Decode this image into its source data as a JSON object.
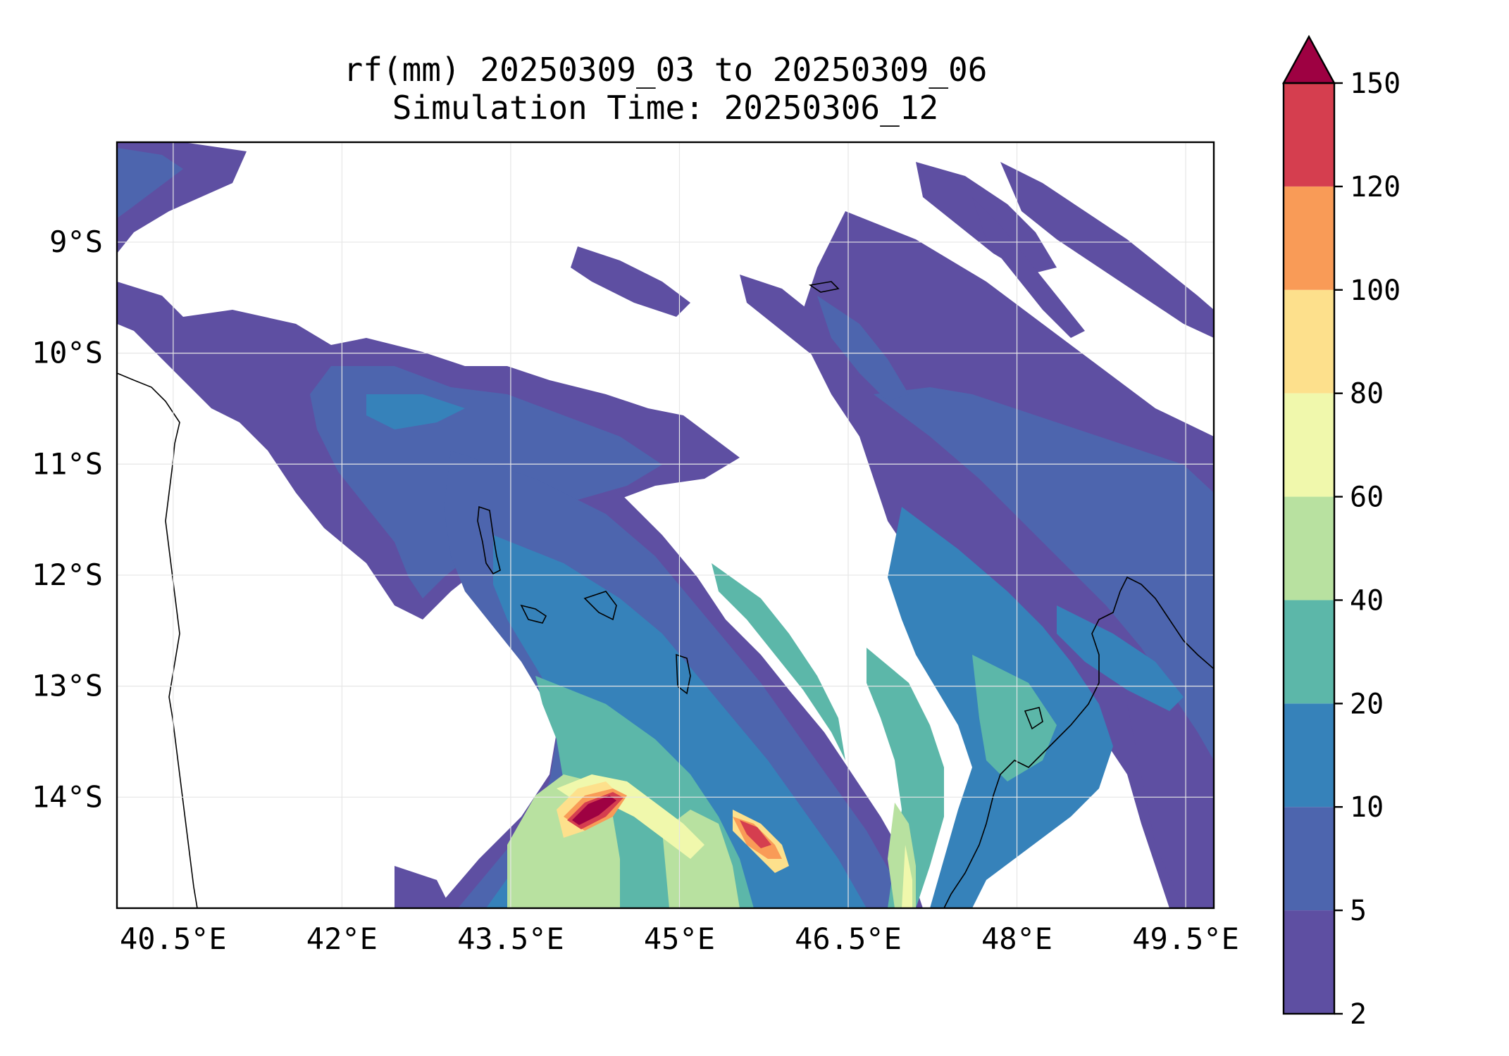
{
  "title": {
    "line1": "rf(mm) 20250309_03 to 20250309_06",
    "line2": "Simulation Time: 20250306_12"
  },
  "map": {
    "region": "Mozambique Channel / Comoros / NW Madagascar",
    "lon_range": [
      40.0,
      49.75
    ],
    "lat_range": [
      -15.0,
      -8.1
    ],
    "x_ticks": [
      {
        "value": 40.5,
        "label": "40.5°E"
      },
      {
        "value": 42.0,
        "label": "42°E"
      },
      {
        "value": 43.5,
        "label": "43.5°E"
      },
      {
        "value": 45.0,
        "label": "45°E"
      },
      {
        "value": 46.5,
        "label": "46.5°E"
      },
      {
        "value": 48.0,
        "label": "48°E"
      },
      {
        "value": 49.5,
        "label": "49.5°E"
      }
    ],
    "y_ticks": [
      {
        "value": -9,
        "label": "9°S"
      },
      {
        "value": -10,
        "label": "10°S"
      },
      {
        "value": -11,
        "label": "11°S"
      },
      {
        "value": -12,
        "label": "12°S"
      },
      {
        "value": -13,
        "label": "13°S"
      },
      {
        "value": -14,
        "label": "14°S"
      }
    ],
    "grid": true,
    "features": [
      "Comoros islands",
      "Mayotte",
      "NW Madagascar coastline",
      "Mozambique/Tanzania coastline",
      "cyclone rainfall band"
    ]
  },
  "colorbar": {
    "extend": "max",
    "levels": [
      {
        "label": "2",
        "value": 2,
        "color": "#5e4fa2"
      },
      {
        "label": "5",
        "value": 5,
        "color": "#4d65ae"
      },
      {
        "label": "10",
        "value": 10,
        "color": "#3682ba"
      },
      {
        "label": "20",
        "value": 20,
        "color": "#5cb7a9"
      },
      {
        "label": "40",
        "value": 40,
        "color": "#b8e1a0"
      },
      {
        "label": "60",
        "value": 60,
        "color": "#f0f8ac"
      },
      {
        "label": "80",
        "value": 80,
        "color": "#fde08c"
      },
      {
        "label": "100",
        "value": 100,
        "color": "#f99b57"
      },
      {
        "label": "120",
        "value": 120,
        "color": "#d53e4f"
      },
      {
        "label": "150",
        "value": 150,
        "color": "#9e0142"
      }
    ]
  }
}
